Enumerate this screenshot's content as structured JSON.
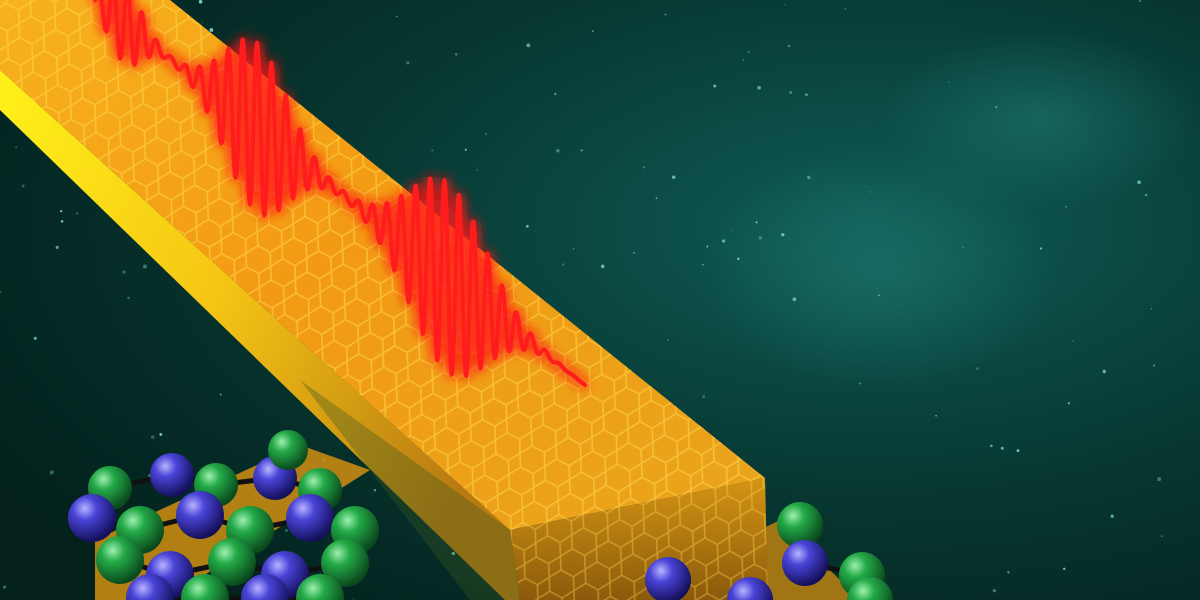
{
  "scene": {
    "colors": {
      "space_center": "#0e5a55",
      "space_mid": "#06332f",
      "space_edge": "#03201d",
      "gold_light": "#ffe21a",
      "gold_mid": "#f5a516",
      "gold_dark": "#c96a08",
      "pulse": "#ff1a1a",
      "pulse_glow": "#ff3030",
      "atom_blue": "#3a34c8",
      "atom_green": "#22a845"
    },
    "icons": [
      "starfield",
      "gold-nanoribbon",
      "optical-pulse-wave",
      "atomic-lattice"
    ]
  }
}
